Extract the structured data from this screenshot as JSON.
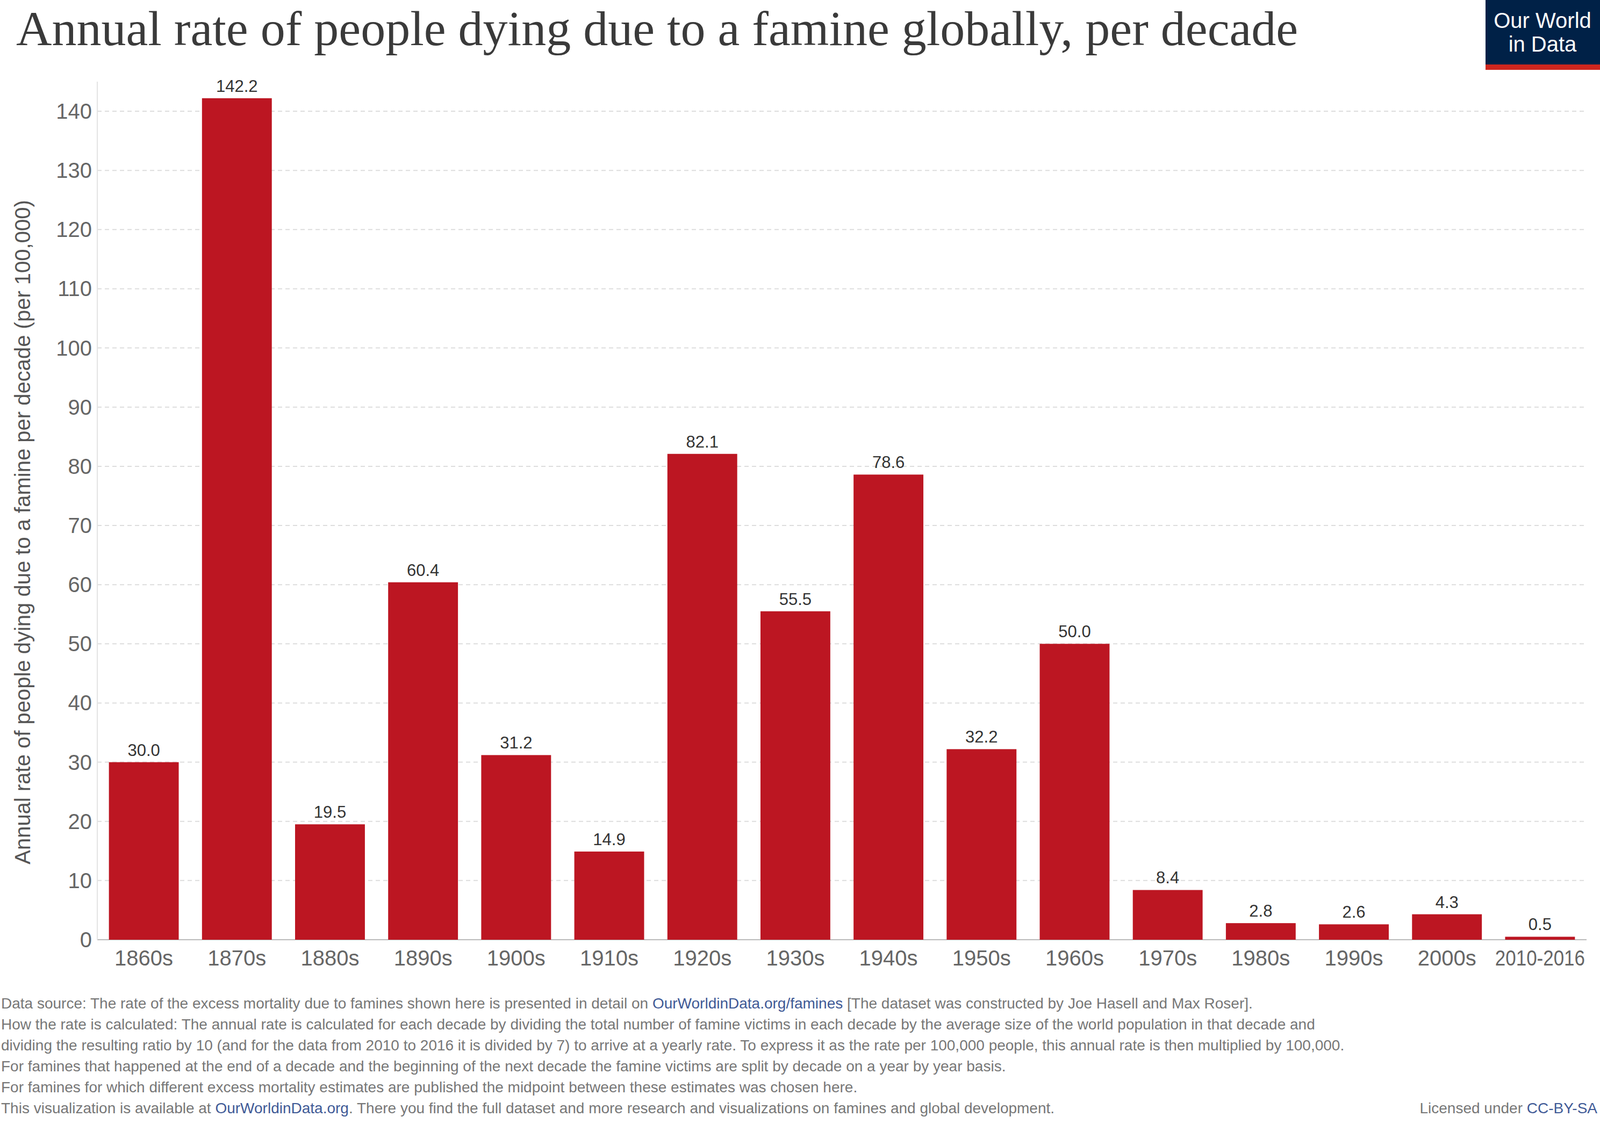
{
  "chart_data": {
    "type": "bar",
    "title": "Annual rate of people dying due to a famine globally, per decade",
    "y_label": "Annual rate of people dying due to a famine per decade (per 100,000)",
    "categories": [
      "1860s",
      "1870s",
      "1880s",
      "1890s",
      "1900s",
      "1910s",
      "1920s",
      "1930s",
      "1940s",
      "1950s",
      "1960s",
      "1970s",
      "1980s",
      "1990s",
      "2000s",
      "2010-2016"
    ],
    "values": [
      30.0,
      142.2,
      19.5,
      60.4,
      31.2,
      14.9,
      82.1,
      55.5,
      78.6,
      32.2,
      50.0,
      8.4,
      2.8,
      2.6,
      4.3,
      0.5
    ],
    "value_labels": [
      "30.0",
      "142.2",
      "19.5",
      "60.4",
      "31.2",
      "14.9",
      "82.1",
      "55.5",
      "78.6",
      "32.2",
      "50.0",
      "8.4",
      "2.8",
      "2.6",
      "4.3",
      "0.5"
    ],
    "color": "#bc1622",
    "ylim": [
      0,
      145
    ],
    "yticks": [
      0,
      10,
      20,
      30,
      40,
      50,
      60,
      70,
      80,
      90,
      100,
      110,
      120,
      130,
      140
    ],
    "grid": true,
    "data_labels": true,
    "logo": [
      "Our World",
      "in Data"
    ],
    "footnotes": [
      [
        "Data source: The rate of the excess mortality due to famines shown here is presented in detail on ",
        "OurWorldinData.org/famines",
        " [The dataset was constructed by Joe Hasell and Max Roser]."
      ],
      [
        "How the rate is calculated: The annual rate is calculated for each decade by dividing the total number of famine victims in each decade by the average size of the world population in that decade and"
      ],
      [
        "dividing the resulting ratio by 10 (and for the data from 2010 to 2016 it is divided by 7) to arrive at a yearly rate. To express it as the rate per 100,000 people, this annual rate is then multiplied by 100,000."
      ],
      [
        "For famines that happened at the end of a decade and the beginning of the next decade the famine victims are split by decade on a year by year basis."
      ],
      [
        "For famines for which different excess mortality estimates are published the midpoint between these estimates was chosen here."
      ],
      [
        "This visualization is available at ",
        "OurWorldinData.org",
        ". There you find the full dataset and more research and visualizations on famines and global development."
      ]
    ],
    "license": [
      "Licensed under ",
      "CC-BY-SA"
    ]
  }
}
